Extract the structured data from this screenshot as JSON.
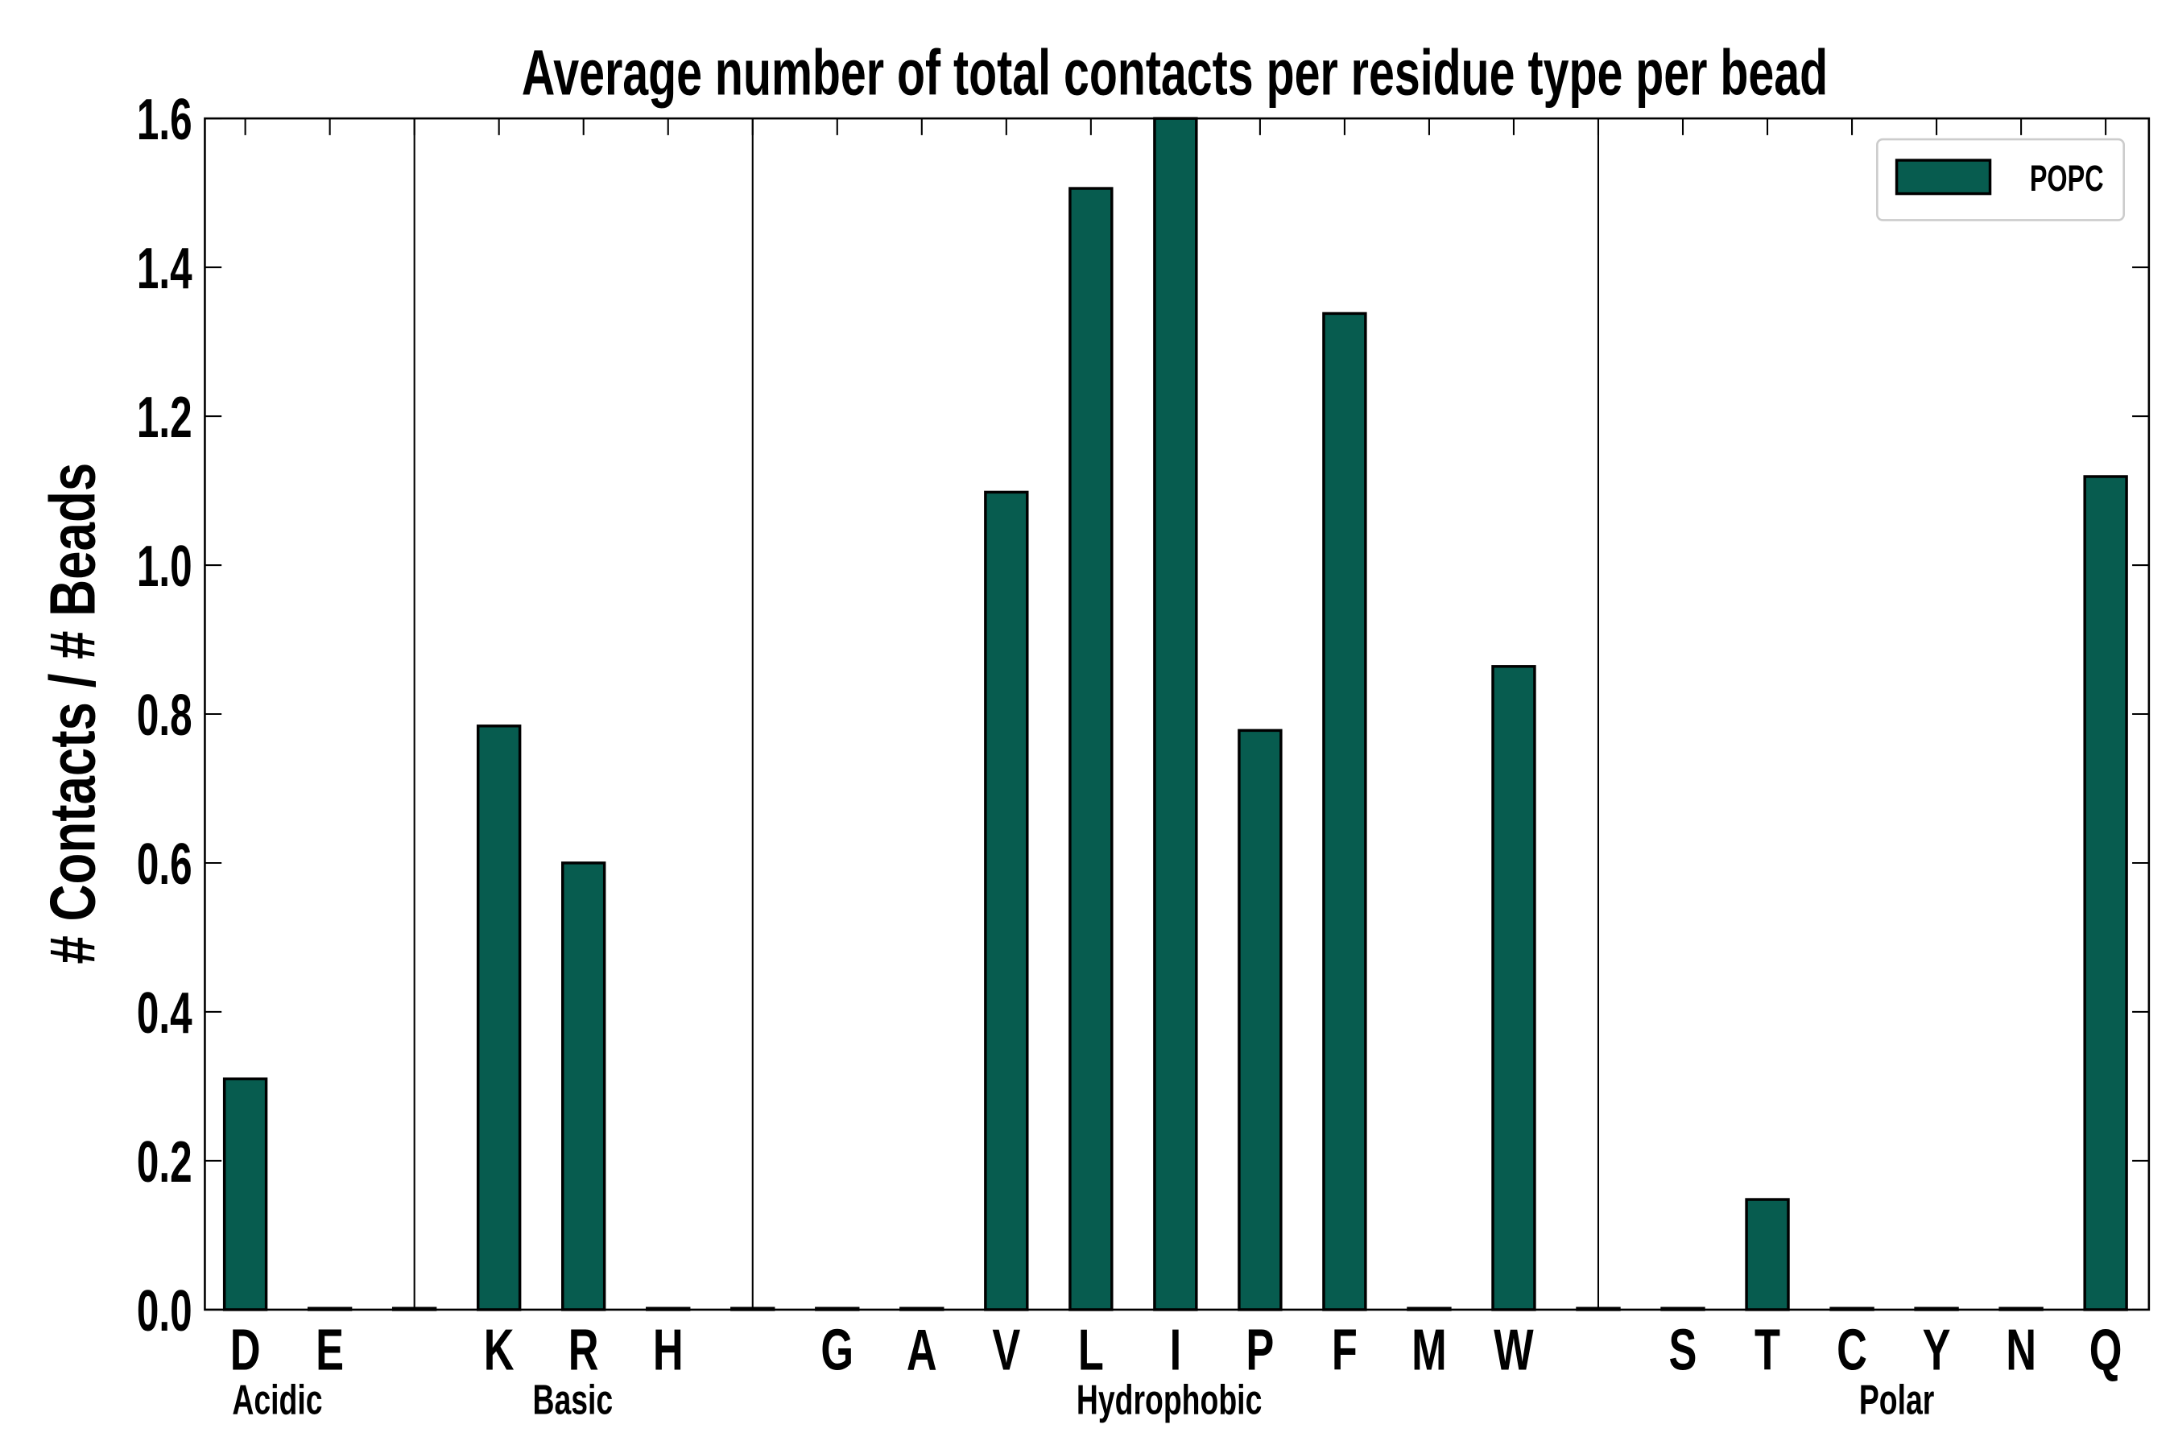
{
  "chart_data": {
    "type": "bar",
    "title": "Average number of total contacts per residue type per bead",
    "xlabel": "",
    "ylabel": "# Contacts / # Beads",
    "ylim": [
      0,
      1.6
    ],
    "yticks": [
      "0.0",
      "0.2",
      "0.4",
      "0.6",
      "0.8",
      "1.0",
      "1.2",
      "1.4",
      "1.6"
    ],
    "categories": [
      "D",
      "E",
      "",
      "K",
      "R",
      "H",
      "",
      "G",
      "A",
      "V",
      "L",
      "I",
      "P",
      "F",
      "M",
      "W",
      "",
      "S",
      "T",
      "C",
      "Y",
      "N",
      "Q"
    ],
    "series": [
      {
        "name": "POPC",
        "color": "#075c4f",
        "values": [
          0.31,
          0,
          0,
          0.784,
          0.6,
          0,
          0,
          0,
          0,
          1.098,
          1.506,
          1.62,
          0.778,
          1.338,
          0,
          0.864,
          0,
          0,
          0.148,
          0,
          0,
          0,
          1.119
        ]
      }
    ],
    "groups": [
      {
        "label": "Acidic"
      },
      {
        "label": "Basic"
      },
      {
        "label": "Hydrophobic"
      },
      {
        "label": "Polar"
      }
    ],
    "legend": {
      "placement": "top-right",
      "entries": [
        "POPC"
      ]
    },
    "grid": false
  }
}
